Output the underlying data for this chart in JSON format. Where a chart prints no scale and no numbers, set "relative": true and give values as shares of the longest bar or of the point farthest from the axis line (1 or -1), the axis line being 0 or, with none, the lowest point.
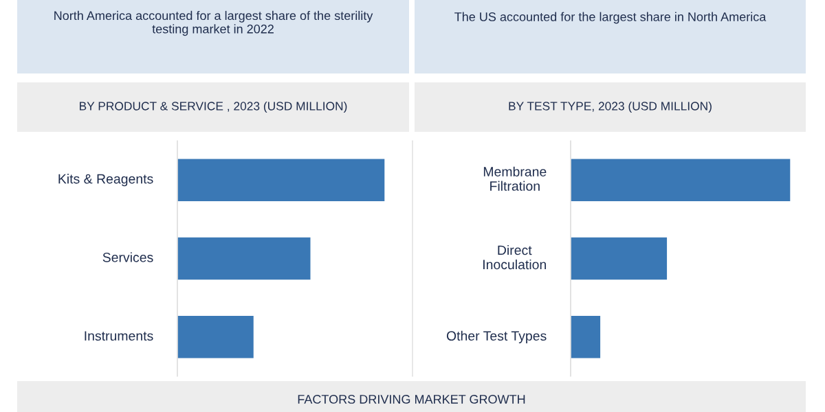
{
  "chart_data": [
    {
      "type": "other",
      "title": "North America accounted for a largest share of the sterility testing market in 2022"
    },
    {
      "type": "other",
      "title": "The US accounted for the largest share in North America"
    },
    {
      "type": "bar",
      "orientation": "horizontal",
      "relative": true,
      "title": "BY PRODUCT & SERVICE , 2023 (USD MILLION)",
      "categories": [
        "Kits & Reagents",
        "Services",
        "Instruments"
      ],
      "values": [
        1,
        0.643,
        0.369
      ],
      "color": "#3a78b5"
    },
    {
      "type": "bar",
      "orientation": "horizontal",
      "relative": true,
      "title": "BY TEST TYPE, 2023 (USD MILLION)",
      "categories": [
        "Membrane Filtration",
        "Direct Inoculation",
        "Other Test Types"
      ],
      "values": [
        1,
        0.44,
        0.137
      ],
      "color": "#3a78b5"
    },
    {
      "type": "other",
      "title": "FACTORS DRIVING MARKET GROWTH"
    }
  ]
}
